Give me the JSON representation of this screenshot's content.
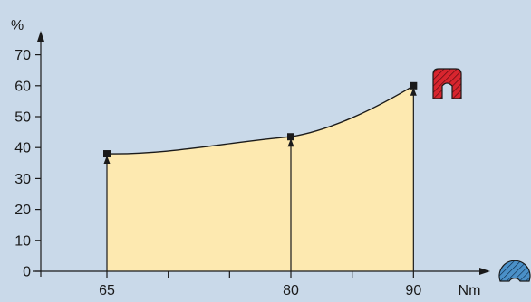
{
  "colors": {
    "background": "#c9d9e9",
    "area_fill": "#fde9b0",
    "line": "#1a1a1a",
    "icon_red": "#d8252e",
    "icon_blue": "#4a90c8"
  },
  "icons": [
    "rectangular-profile-icon",
    "round-profile-icon"
  ],
  "chart_data": {
    "type": "area",
    "title": "",
    "xlabel": "Nm",
    "ylabel": "%",
    "ylim": [
      0,
      75
    ],
    "yticks": [
      0,
      10,
      20,
      30,
      40,
      50,
      60,
      70
    ],
    "xlim": [
      58,
      100
    ],
    "xticks": [
      65,
      80,
      90
    ],
    "x_minor_ticks": [
      70,
      75,
      85
    ],
    "grid": false,
    "series": [
      {
        "points": [
          [
            65,
            38
          ],
          [
            80,
            43.5
          ],
          [
            90,
            60
          ]
        ]
      }
    ]
  }
}
